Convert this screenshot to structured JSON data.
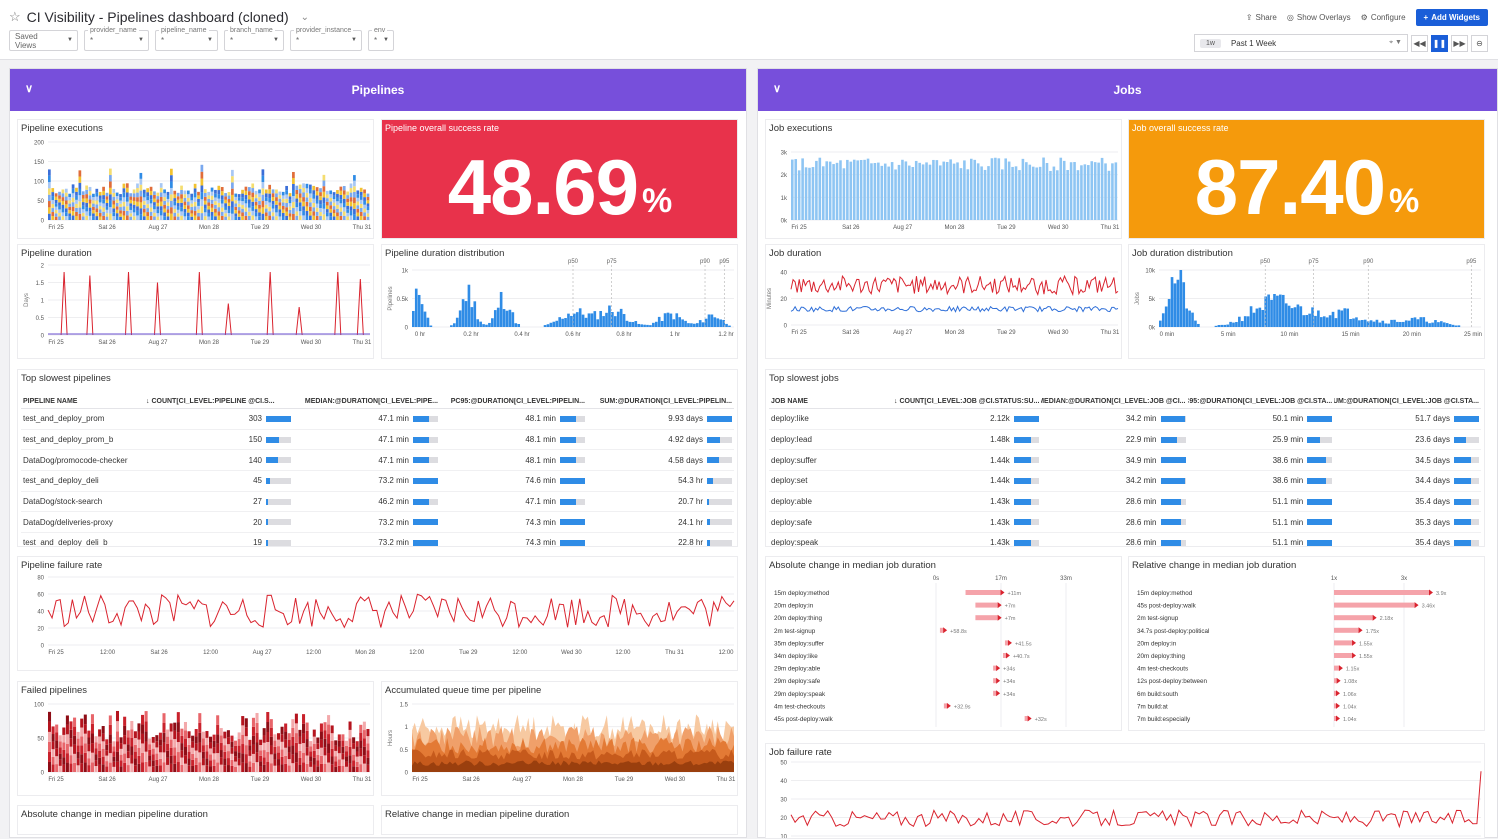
{
  "header": {
    "title": "CI Visibility - Pipelines dashboard (cloned)",
    "saved_views": "Saved Views",
    "vars": [
      {
        "name": "provider_name",
        "value": "*"
      },
      {
        "name": "pipeline_name",
        "value": "*"
      },
      {
        "name": "branch_name",
        "value": "*"
      },
      {
        "name": "provider_instance",
        "value": "*"
      },
      {
        "name": "env",
        "value": "*"
      }
    ],
    "share": "Share",
    "overlays": "Show Overlays",
    "configure": "Configure",
    "add_widgets": "Add Widgets",
    "time_badge": "1w",
    "time_label": "Past 1 Week"
  },
  "pipelines": {
    "title": "Pipelines",
    "executions_title": "Pipeline executions",
    "success_title": "Pipeline overall success rate",
    "success_value": "48.69",
    "success_unit": "%",
    "success_color": "#e8324b",
    "duration_title": "Pipeline duration",
    "distribution_title": "Pipeline duration distribution",
    "slowest_title": "Top slowest pipelines",
    "failure_rate_title": "Pipeline failure rate",
    "failed_title": "Failed pipelines",
    "queue_title": "Accumulated queue time per pipeline",
    "abs_change_title": "Absolute change in median pipeline duration",
    "rel_change_title": "Relative change in median pipeline duration",
    "exec_y": [
      "200",
      "150",
      "100",
      "50",
      "0"
    ],
    "dur_y": [
      "2",
      "1.5",
      "1",
      "0.5",
      "0"
    ],
    "dur_unit": "Days",
    "dist_y": [
      "1k",
      "0.5k",
      "0"
    ],
    "dist_unit": "Pipelines",
    "dist_x": [
      "0 hr",
      "0.2 hr",
      "0.4 hr",
      "0.6 hr",
      "0.8 hr",
      "1 hr",
      "1.2 hr"
    ],
    "dist_marks": [
      "p50",
      "p75",
      "p90",
      "p95"
    ],
    "fail_y": [
      "80",
      "60",
      "40",
      "20",
      "0"
    ],
    "fail_x": [
      "Fri 25",
      "12:00",
      "Sat 26",
      "12:00",
      "Aug 27",
      "12:00",
      "Mon 28",
      "12:00",
      "Tue 29",
      "12:00",
      "Wed 30",
      "12:00",
      "Thu 31",
      "12:00"
    ],
    "failed_y": [
      "100",
      "50",
      "0"
    ],
    "queue_y": [
      "1.5",
      "1",
      "0.5",
      "0"
    ],
    "queue_unit": "Hours",
    "table": {
      "headers": [
        "PIPELINE NAME",
        "COUNT[CI_LEVEL:PIPELINE @CI.S...",
        "MEDIAN:@DURATION[CI_LEVEL:PIPE...",
        "PC95:@DURATION[CI_LEVEL:PIPELIN...",
        "SUM:@DURATION[CI_LEVEL:PIPELIN..."
      ],
      "rows": [
        {
          "name": "test_and_deploy_prom",
          "count": "303",
          "median": "47.1 min",
          "pc95": "48.1 min",
          "sum": "9.93 days",
          "f": [
            1,
            0.64,
            0.62,
            1
          ]
        },
        {
          "name": "test_and_deploy_prom_b",
          "count": "150",
          "median": "47.1 min",
          "pc95": "48.1 min",
          "sum": "4.92 days",
          "f": [
            0.5,
            0.64,
            0.62,
            0.5
          ]
        },
        {
          "name": "DataDog/promocode-checker",
          "count": "140",
          "median": "47.1 min",
          "pc95": "48.1 min",
          "sum": "4.58 days",
          "f": [
            0.46,
            0.64,
            0.62,
            0.46
          ]
        },
        {
          "name": "test_and_deploy_deli",
          "count": "45",
          "median": "73.2 min",
          "pc95": "74.6 min",
          "sum": "54.3 hr",
          "f": [
            0.15,
            1,
            1,
            0.23
          ]
        },
        {
          "name": "DataDog/stock-search",
          "count": "27",
          "median": "46.2 min",
          "pc95": "47.1 min",
          "sum": "20.7 hr",
          "f": [
            0.09,
            0.63,
            0.63,
            0.09
          ]
        },
        {
          "name": "DataDog/deliveries-proxy",
          "count": "20",
          "median": "73.2 min",
          "pc95": "74.3 min",
          "sum": "24.1 hr",
          "f": [
            0.07,
            1,
            1,
            0.1
          ]
        },
        {
          "name": "test_and_deploy_deli_b",
          "count": "19",
          "median": "73.2 min",
          "pc95": "74.3 min",
          "sum": "22.8 hr",
          "f": [
            0.06,
            1,
            1,
            0.1
          ]
        }
      ]
    }
  },
  "jobs": {
    "title": "Jobs",
    "executions_title": "Job executions",
    "success_title": "Job overall success rate",
    "success_value": "87.40",
    "success_unit": "%",
    "success_color": "#f59a0c",
    "duration_title": "Job duration",
    "distribution_title": "Job duration distribution",
    "slowest_title": "Top slowest jobs",
    "abs_change_title": "Absolute change in median job duration",
    "rel_change_title": "Relative change in median job duration",
    "failure_rate_title": "Job failure rate",
    "exec_y": [
      "3k",
      "2k",
      "1k",
      "0k"
    ],
    "dur_y": [
      "40",
      "20",
      "0"
    ],
    "dur_unit": "Minutes",
    "dist_y": [
      "10k",
      "5k",
      "0k"
    ],
    "dist_unit": "Jobs",
    "dist_x": [
      "0 min",
      "5 min",
      "10 min",
      "15 min",
      "20 min",
      "25 min"
    ],
    "dist_marks": [
      "p50",
      "p75",
      "p90",
      "p95"
    ],
    "fail_y": [
      "50",
      "40",
      "30",
      "20",
      "10"
    ],
    "table": {
      "headers": [
        "JOB NAME",
        "COUNT[CI_LEVEL:JOB @CI.STATUS:SU...",
        "MEDIAN:@DURATION[CI_LEVEL:JOB @CI...",
        "PC95:@DURATION[CI_LEVEL:JOB @CI.STA...",
        "SUM:@DURATION[CI_LEVEL:JOB @CI.STA..."
      ],
      "rows": [
        {
          "name": "deploy:like",
          "count": "2.12k",
          "median": "34.2 min",
          "pc95": "50.1 min",
          "sum": "51.7 days",
          "f": [
            1,
            0.98,
            0.98,
            1
          ]
        },
        {
          "name": "deploy:lead",
          "count": "1.48k",
          "median": "22.9 min",
          "pc95": "25.9 min",
          "sum": "23.6 days",
          "f": [
            0.7,
            0.66,
            0.5,
            0.46
          ]
        },
        {
          "name": "deploy:suffer",
          "count": "1.44k",
          "median": "34.9 min",
          "pc95": "38.6 min",
          "sum": "34.5 days",
          "f": [
            0.68,
            1,
            0.75,
            0.67
          ]
        },
        {
          "name": "deploy:set",
          "count": "1.44k",
          "median": "34.2 min",
          "pc95": "38.6 min",
          "sum": "34.4 days",
          "f": [
            0.68,
            0.98,
            0.75,
            0.67
          ]
        },
        {
          "name": "deploy:able",
          "count": "1.43k",
          "median": "28.6 min",
          "pc95": "51.1 min",
          "sum": "35.4 days",
          "f": [
            0.67,
            0.82,
            1,
            0.68
          ]
        },
        {
          "name": "deploy:safe",
          "count": "1.43k",
          "median": "28.6 min",
          "pc95": "51.1 min",
          "sum": "35.3 days",
          "f": [
            0.67,
            0.82,
            1,
            0.68
          ]
        },
        {
          "name": "deploy:speak",
          "count": "1.43k",
          "median": "28.6 min",
          "pc95": "51.1 min",
          "sum": "35.4 days",
          "f": [
            0.67,
            0.82,
            1,
            0.68
          ]
        }
      ]
    },
    "abs_axis": [
      "0s",
      "17m",
      "33m"
    ],
    "abs_rows": [
      {
        "label": "15m deploy:method",
        "delta": "+11m",
        "v": 11
      },
      {
        "label": "20m deploy:in",
        "delta": "+7m",
        "v": 7
      },
      {
        "label": "20m deploy:thing",
        "delta": "+7m",
        "v": 7
      },
      {
        "label": "2m test-signup",
        "delta": "+58.8s",
        "v": 1
      },
      {
        "label": "35m deploy:suffer",
        "delta": "+41.5s",
        "v": 0.7
      },
      {
        "label": "34m deploy:like",
        "delta": "+40.7s",
        "v": 0.7
      },
      {
        "label": "29m deploy:able",
        "delta": "+34s",
        "v": 0.6
      },
      {
        "label": "29m deploy:safe",
        "delta": "+34s",
        "v": 0.6
      },
      {
        "label": "29m deploy:speak",
        "delta": "+34s",
        "v": 0.6
      },
      {
        "label": "4m test-checkouts",
        "delta": "+32.9s",
        "v": 0.5
      },
      {
        "label": "45s post-deploy:walk",
        "delta": "+32s",
        "v": 0.5
      }
    ],
    "rel_axis": [
      "1x",
      "3x"
    ],
    "rel_rows": [
      {
        "label": "15m deploy:method",
        "delta": "3.9x",
        "v": 3.9
      },
      {
        "label": "45s post-deploy:walk",
        "delta": "3.46x",
        "v": 3.46
      },
      {
        "label": "2m test-signup",
        "delta": "2.18x",
        "v": 2.18
      },
      {
        "label": "34.7s post-deploy:political",
        "delta": "1.75x",
        "v": 1.75
      },
      {
        "label": "20m deploy:in",
        "delta": "1.55x",
        "v": 1.55
      },
      {
        "label": "20m deploy:thing",
        "delta": "1.55x",
        "v": 1.55
      },
      {
        "label": "4m test-checkouts",
        "delta": "1.15x",
        "v": 1.15
      },
      {
        "label": "12s post-deploy:between",
        "delta": "1.08x",
        "v": 1.08
      },
      {
        "label": "6m build:south",
        "delta": "1.06x",
        "v": 1.06
      },
      {
        "label": "7m build:at",
        "delta": "1.04x",
        "v": 1.04
      },
      {
        "label": "7m build:especially",
        "delta": "1.04x",
        "v": 1.04
      }
    ]
  },
  "day_ticks": [
    "Fri 25",
    "Sat 26",
    "Aug 27",
    "Mon 28",
    "Tue 29",
    "Wed 30",
    "Thu 31"
  ],
  "colors": {
    "accent": "#774fdb",
    "bar": "#2f8ce6",
    "line_red": "#d9232e",
    "jobs_bar": "#8ec5f3"
  }
}
